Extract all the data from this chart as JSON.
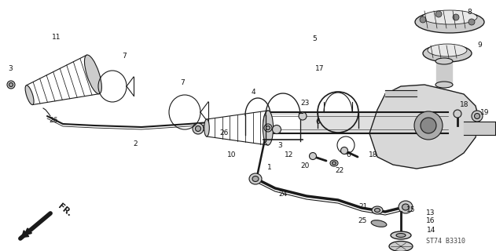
{
  "fig_code": "ST74 B3310",
  "bg_color": "#ffffff",
  "fg_color": "#1a1a1a",
  "fig_width": 6.31,
  "fig_height": 3.2,
  "dpi": 100
}
